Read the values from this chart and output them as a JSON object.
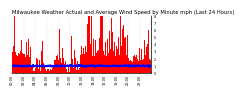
{
  "title": "Milwaukee Weather Actual and Average Wind Speed by Minute mph (Last 24 Hours)",
  "background_color": "#ffffff",
  "plot_bg_color": "#ffffff",
  "bar_color": "#ff0000",
  "line_color": "#0000ff",
  "grid_color": "#bbbbbb",
  "ylim": [
    0,
    8
  ],
  "yticks": [
    0,
    1,
    2,
    3,
    4,
    5,
    6,
    7,
    8
  ],
  "n_points": 1440,
  "title_fontsize": 3.8,
  "tick_fontsize": 2.5,
  "seed": 12345
}
